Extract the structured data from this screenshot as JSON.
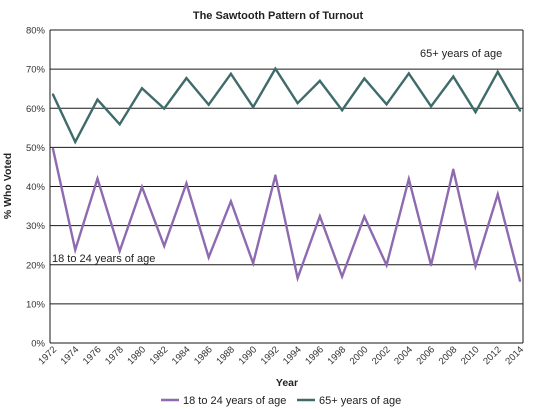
{
  "chart_data": {
    "type": "line",
    "title": "The Sawtooth Pattern of Turnout",
    "xlabel": "Year",
    "ylabel": "% Who Voted",
    "ylim": [
      0,
      80
    ],
    "y_ticks": [
      "0%",
      "10%",
      "20%",
      "30%",
      "40%",
      "50%",
      "60%",
      "70%",
      "80%"
    ],
    "y_tick_values": [
      0,
      10,
      20,
      30,
      40,
      50,
      60,
      70,
      80
    ],
    "grid": true,
    "legend_position": "bottom",
    "x": [
      "1972",
      "1974",
      "1976",
      "1978",
      "1980",
      "1982",
      "1984",
      "1986",
      "1988",
      "1990",
      "1992",
      "1994",
      "1996",
      "1998",
      "2000",
      "2002",
      "2004",
      "2006",
      "2008",
      "2010",
      "2012",
      "2014"
    ],
    "series": [
      {
        "name": "18 to 24 years of age",
        "color": "#8e6bb0",
        "values": [
          49.6,
          23.8,
          42.0,
          23.5,
          39.9,
          24.8,
          40.8,
          21.9,
          36.2,
          20.4,
          42.8,
          16.6,
          32.4,
          17.0,
          32.3,
          19.9,
          41.9,
          19.9,
          44.3,
          19.6,
          38.0,
          15.9
        ]
      },
      {
        "name": "65+ years of age",
        "color": "#3f6b6b",
        "values": [
          63.5,
          51.4,
          62.2,
          55.9,
          65.1,
          59.9,
          67.7,
          60.9,
          68.8,
          60.3,
          70.1,
          61.3,
          67.0,
          59.5,
          67.6,
          61.0,
          68.9,
          60.5,
          68.1,
          59.0,
          69.3,
          59.4
        ]
      }
    ],
    "annotations": {
      "young": "18 to 24 years of age",
      "old": "65+ years of age"
    }
  }
}
